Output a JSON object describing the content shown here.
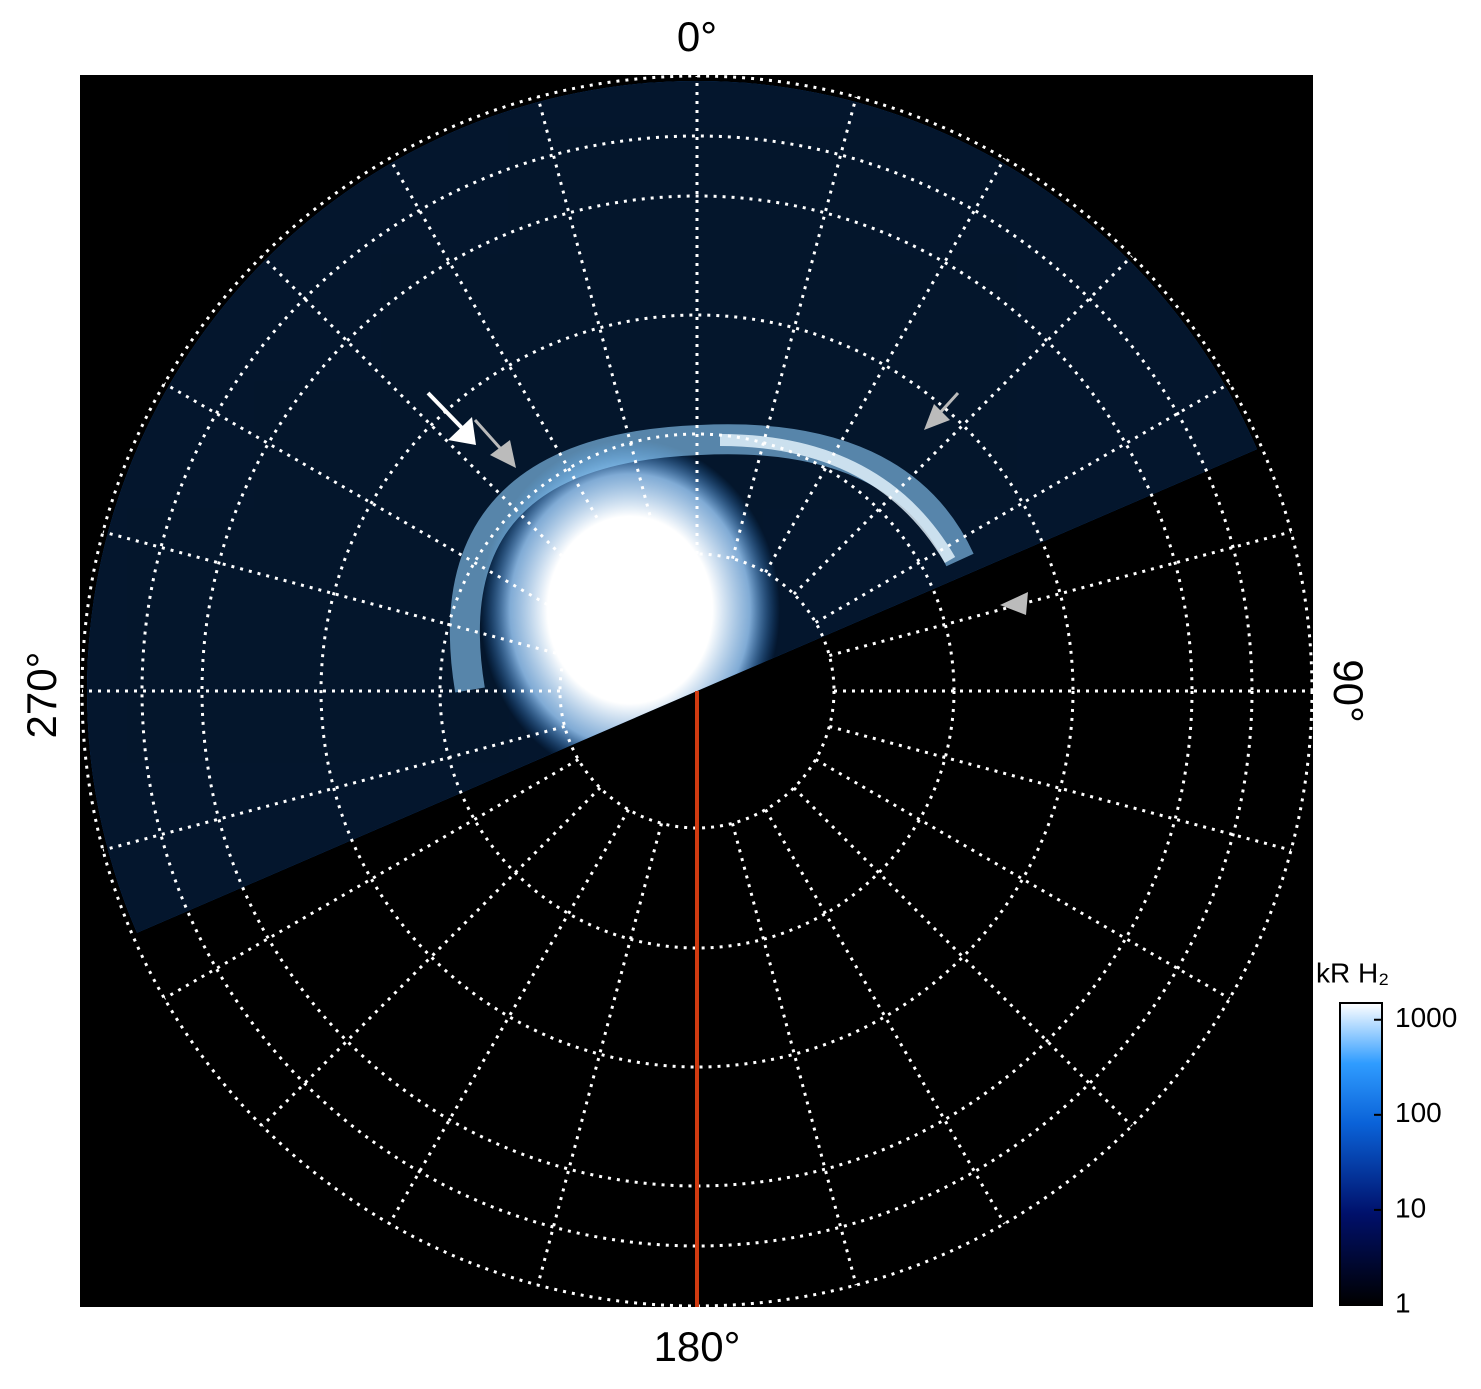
{
  "chart_data": {
    "type": "polar-map",
    "angle_ticks": [
      {
        "value": 0,
        "label": "0°"
      },
      {
        "value": 90,
        "label": "90°"
      },
      {
        "value": 180,
        "label": "180°"
      },
      {
        "value": 270,
        "label": "270°"
      }
    ],
    "colorbar": {
      "label": "kR H₂",
      "lim": [
        1,
        1500
      ],
      "ticks": [
        1,
        10,
        100,
        1000
      ],
      "log": true
    }
  }
}
